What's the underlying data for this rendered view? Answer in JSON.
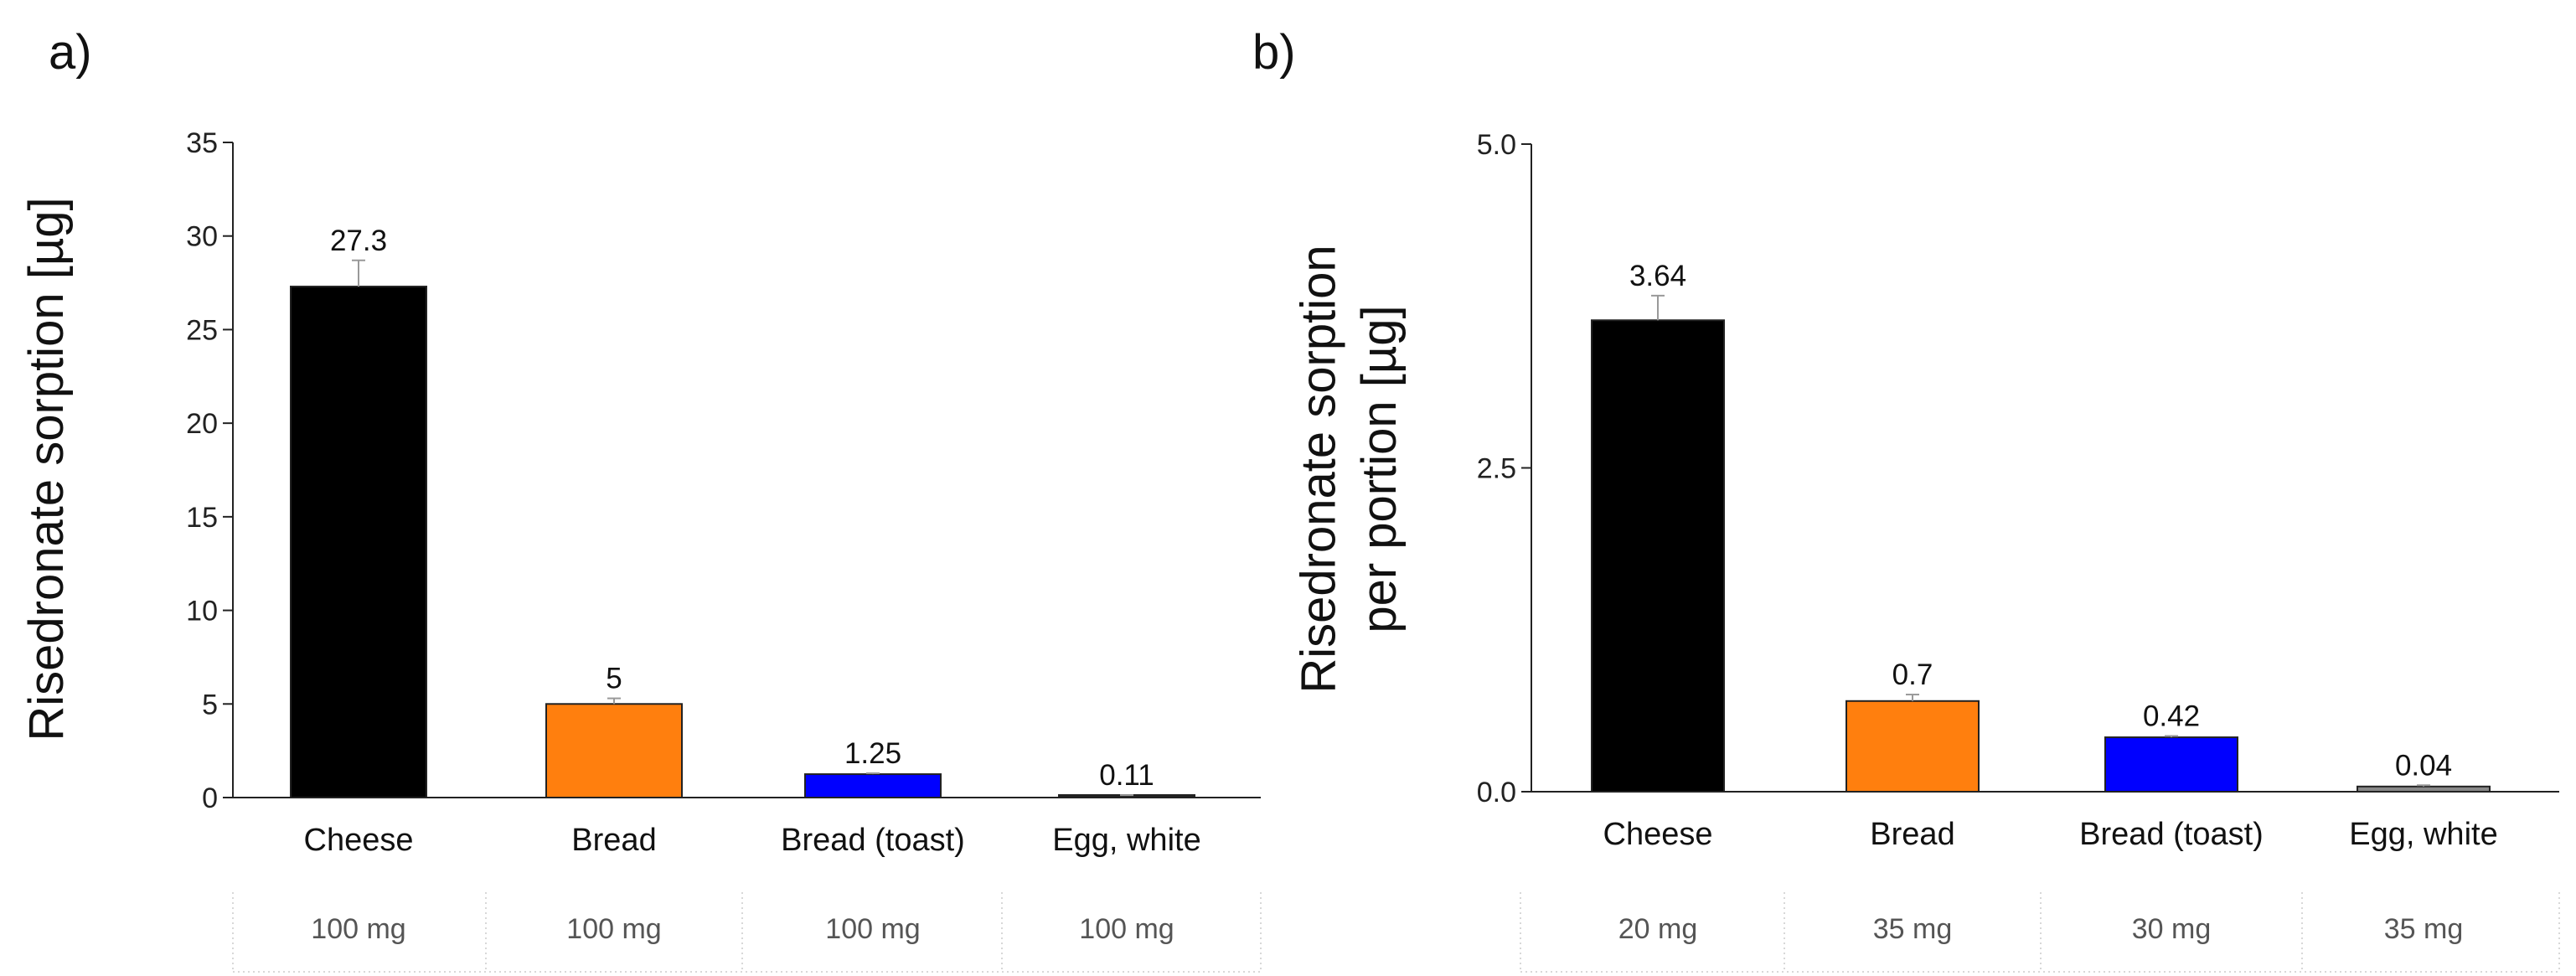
{
  "chart_data": [
    {
      "type": "bar",
      "panel": "a)",
      "title": "",
      "xlabel": "",
      "ylabel": "Risedronate sorption [µg]",
      "ylim": [
        0,
        35
      ],
      "yticks": [
        0,
        5,
        10,
        15,
        20,
        25,
        30,
        35
      ],
      "categories": [
        "Cheese",
        "Bread",
        "Bread (toast)",
        "Egg, white"
      ],
      "values": [
        27.3,
        5,
        1.25,
        0.11
      ],
      "value_labels": [
        "27.3",
        "5",
        "1.25",
        "0.11"
      ],
      "errors": [
        1.4,
        0.3,
        0.05,
        0.02
      ],
      "colors": [
        "#000000",
        "#ff7f0e",
        "#0000ff",
        "#222222"
      ],
      "portions": [
        "100 mg",
        "100 mg",
        "100 mg",
        "100 mg"
      ],
      "grid": false
    },
    {
      "type": "bar",
      "panel": "b)",
      "title": "",
      "xlabel": "",
      "ylabel": [
        "Risedronate sorption",
        "per portion [µg]"
      ],
      "ylim": [
        0,
        5
      ],
      "yticks": [
        0.0,
        2.5,
        5.0
      ],
      "ytick_labels": [
        "0.0",
        "2.5",
        "5.0"
      ],
      "categories": [
        "Cheese",
        "Bread",
        "Bread (toast)",
        "Egg, white"
      ],
      "values": [
        3.64,
        0.7,
        0.42,
        0.04
      ],
      "value_labels": [
        "3.64",
        "0.7",
        "0.42",
        "0.04"
      ],
      "errors": [
        0.19,
        0.05,
        0.01,
        0.01
      ],
      "colors": [
        "#000000",
        "#ff7f0e",
        "#0000ff",
        "#888888"
      ],
      "portions": [
        "20 mg",
        "35 mg",
        "30 mg",
        "35 mg"
      ],
      "grid": false
    }
  ]
}
